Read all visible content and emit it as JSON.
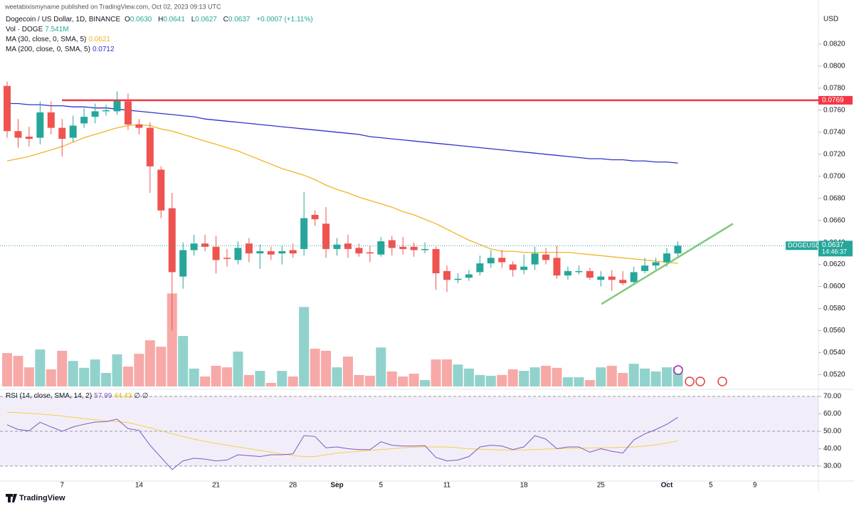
{
  "page": {
    "byline": "weetabixismyname published on TradingView.com, Oct 02, 2023 09:13 UTC",
    "currency": "USD",
    "footer": "TradingView"
  },
  "header": {
    "title": "Dogecoin / US Dollar, 1D, BINANCE",
    "ohlc": [
      {
        "k": "O",
        "v": "0.0630"
      },
      {
        "k": "H",
        "v": "0.0641"
      },
      {
        "k": "L",
        "v": "0.0627"
      },
      {
        "k": "C",
        "v": "0.0637"
      }
    ],
    "change": "+0.0007 (+1.11%)",
    "volume": {
      "name": "Vol · DOGE",
      "value": "7.541M"
    }
  },
  "chart_data": [
    {
      "type": "candlestick",
      "x": [
        "2023-08-02",
        "2023-08-03",
        "2023-08-04",
        "2023-08-05",
        "2023-08-06",
        "2023-08-07",
        "2023-08-08",
        "2023-08-09",
        "2023-08-10",
        "2023-08-11",
        "2023-08-12",
        "2023-08-13",
        "2023-08-14",
        "2023-08-15",
        "2023-08-16",
        "2023-08-17",
        "2023-08-18",
        "2023-08-19",
        "2023-08-20",
        "2023-08-21",
        "2023-08-22",
        "2023-08-23",
        "2023-08-24",
        "2023-08-25",
        "2023-08-26",
        "2023-08-27",
        "2023-08-28",
        "2023-08-29",
        "2023-08-30",
        "2023-08-31",
        "2023-09-01",
        "2023-09-02",
        "2023-09-03",
        "2023-09-04",
        "2023-09-05",
        "2023-09-06",
        "2023-09-07",
        "2023-09-08",
        "2023-09-09",
        "2023-09-10",
        "2023-09-11",
        "2023-09-12",
        "2023-09-13",
        "2023-09-14",
        "2023-09-15",
        "2023-09-16",
        "2023-09-17",
        "2023-09-18",
        "2023-09-19",
        "2023-09-20",
        "2023-09-21",
        "2023-09-22",
        "2023-09-23",
        "2023-09-24",
        "2023-09-25",
        "2023-09-26",
        "2023-09-27",
        "2023-09-28",
        "2023-09-29",
        "2023-09-30",
        "2023-10-01",
        "2023-10-02"
      ],
      "open": [
        0.0782,
        0.0741,
        0.0736,
        0.0735,
        0.0758,
        0.0744,
        0.0735,
        0.0748,
        0.0754,
        0.0759,
        0.0759,
        0.0768,
        0.0747,
        0.0744,
        0.0706,
        0.0671,
        0.0609,
        0.0633,
        0.0639,
        0.0636,
        0.0626,
        0.0624,
        0.0639,
        0.063,
        0.0632,
        0.063,
        0.0633,
        0.0634,
        0.0665,
        0.0657,
        0.0634,
        0.0639,
        0.0635,
        0.0631,
        0.0629,
        0.0642,
        0.0636,
        0.0636,
        0.0633,
        0.0634,
        0.0614,
        0.0606,
        0.0608,
        0.0613,
        0.0621,
        0.0626,
        0.062,
        0.0615,
        0.062,
        0.0629,
        0.0626,
        0.061,
        0.0613,
        0.0614,
        0.0606,
        0.0609,
        0.0606,
        0.0604,
        0.0614,
        0.0619,
        0.0622,
        0.063
      ],
      "high": [
        0.0786,
        0.0752,
        0.0745,
        0.0768,
        0.0768,
        0.0752,
        0.0755,
        0.0762,
        0.0766,
        0.0765,
        0.0777,
        0.0775,
        0.0752,
        0.0749,
        0.0709,
        0.0685,
        0.064,
        0.0647,
        0.0647,
        0.0646,
        0.0634,
        0.0641,
        0.0644,
        0.0638,
        0.0636,
        0.0637,
        0.0639,
        0.0686,
        0.0669,
        0.0672,
        0.0644,
        0.0647,
        0.0639,
        0.0637,
        0.0645,
        0.0646,
        0.0645,
        0.064,
        0.064,
        0.0636,
        0.0619,
        0.0612,
        0.0615,
        0.0628,
        0.0633,
        0.0633,
        0.0623,
        0.0629,
        0.0636,
        0.0635,
        0.0637,
        0.0618,
        0.0619,
        0.0617,
        0.0614,
        0.0615,
        0.0614,
        0.0618,
        0.0626,
        0.0626,
        0.0635,
        0.0641
      ],
      "low": [
        0.0735,
        0.0726,
        0.0727,
        0.0729,
        0.0738,
        0.0718,
        0.0731,
        0.0744,
        0.0748,
        0.0755,
        0.0756,
        0.0742,
        0.0738,
        0.0685,
        0.0662,
        0.056,
        0.0598,
        0.0628,
        0.0632,
        0.0612,
        0.0618,
        0.062,
        0.0622,
        0.0616,
        0.0624,
        0.062,
        0.0626,
        0.0628,
        0.0655,
        0.0626,
        0.0628,
        0.0626,
        0.0627,
        0.0622,
        0.0627,
        0.0628,
        0.0629,
        0.0627,
        0.063,
        0.0597,
        0.0595,
        0.0603,
        0.0605,
        0.061,
        0.0617,
        0.0617,
        0.0609,
        0.0611,
        0.0615,
        0.062,
        0.0607,
        0.0606,
        0.0611,
        0.0606,
        0.06,
        0.0596,
        0.0601,
        0.0601,
        0.0612,
        0.0615,
        0.0618,
        0.0627
      ],
      "close": [
        0.0741,
        0.0735,
        0.0734,
        0.0758,
        0.0744,
        0.0734,
        0.0746,
        0.0754,
        0.0759,
        0.076,
        0.0769,
        0.0747,
        0.0744,
        0.0709,
        0.0669,
        0.0613,
        0.0633,
        0.0639,
        0.0636,
        0.0624,
        0.0625,
        0.0635,
        0.063,
        0.0632,
        0.0629,
        0.0632,
        0.063,
        0.0662,
        0.0661,
        0.0634,
        0.0638,
        0.0634,
        0.063,
        0.063,
        0.0641,
        0.0635,
        0.0634,
        0.0633,
        0.0634,
        0.0612,
        0.0606,
        0.0607,
        0.0611,
        0.0621,
        0.0626,
        0.0622,
        0.0615,
        0.0618,
        0.063,
        0.0624,
        0.061,
        0.0614,
        0.0614,
        0.0608,
        0.0609,
        0.0606,
        0.0603,
        0.0613,
        0.0619,
        0.0622,
        0.063,
        0.0637
      ],
      "volume": [
        13.1,
        12.0,
        7.5,
        14.5,
        6.7,
        14.0,
        10.0,
        7.3,
        10.6,
        5.3,
        12.6,
        7.8,
        12.8,
        18.1,
        15.6,
        36.5,
        19.8,
        7.0,
        3.9,
        8.1,
        7.5,
        13.7,
        4.5,
        6.1,
        1.4,
        6.1,
        3.9,
        31.2,
        14.8,
        14.0,
        7.5,
        11.7,
        4.5,
        4.2,
        15.3,
        5.9,
        3.9,
        5.0,
        2.5,
        10.6,
        10.6,
        8.6,
        7.0,
        4.5,
        4.2,
        4.5,
        6.7,
        6.1,
        7.5,
        8.1,
        7.3,
        3.6,
        3.6,
        2.5,
        7.5,
        8.1,
        5.3,
        8.9,
        7.0,
        5.9,
        7.5,
        7.541
      ],
      "up_color": "#26a69a",
      "down_color": "#ef5350",
      "ma": [
        {
          "name": "MA (30, close, 0, SMA, 5)",
          "color": "#f0b429",
          "last_label": "0.0621",
          "values": [
            0.0714,
            0.0716,
            0.0718,
            0.0721,
            0.0724,
            0.0727,
            0.0731,
            0.0735,
            0.0738,
            0.0741,
            0.0744,
            0.0746,
            0.0747,
            0.0746,
            0.0743,
            0.0741,
            0.0738,
            0.0735,
            0.0732,
            0.0729,
            0.0726,
            0.0723,
            0.0719,
            0.0715,
            0.0711,
            0.0707,
            0.0704,
            0.0701,
            0.0697,
            0.0692,
            0.0688,
            0.0685,
            0.0681,
            0.0678,
            0.0675,
            0.0672,
            0.0668,
            0.0665,
            0.0661,
            0.0657,
            0.0652,
            0.0647,
            0.0642,
            0.0638,
            0.0634,
            0.0632,
            0.0632,
            0.0631,
            0.0631,
            0.0631,
            0.0631,
            0.0631,
            0.063,
            0.0629,
            0.0628,
            0.0627,
            0.0626,
            0.0625,
            0.0624,
            0.0623,
            0.0622,
            0.0621
          ]
        },
        {
          "name": "MA (200, close, 0, SMA, 5)",
          "color": "#3030d0",
          "last_label": "0.0712",
          "values": [
            0.0766,
            0.0766,
            0.0765,
            0.0765,
            0.0764,
            0.0764,
            0.0763,
            0.0763,
            0.0762,
            0.0762,
            0.0761,
            0.076,
            0.0759,
            0.0758,
            0.0757,
            0.0756,
            0.0755,
            0.0754,
            0.0752,
            0.0751,
            0.075,
            0.0749,
            0.0748,
            0.0747,
            0.0746,
            0.0745,
            0.0744,
            0.0743,
            0.0742,
            0.0741,
            0.074,
            0.0739,
            0.0738,
            0.0736,
            0.0735,
            0.0734,
            0.0733,
            0.0732,
            0.0731,
            0.073,
            0.0729,
            0.0728,
            0.0727,
            0.0726,
            0.0725,
            0.0724,
            0.0723,
            0.0722,
            0.0721,
            0.072,
            0.0719,
            0.0718,
            0.0717,
            0.0716,
            0.0716,
            0.0715,
            0.0715,
            0.0714,
            0.0714,
            0.0713,
            0.0713,
            0.0712
          ]
        }
      ],
      "hline": {
        "value": 0.0769,
        "label": "0.0769",
        "color": "#f23645"
      },
      "trendline": {
        "from": 0.0584,
        "to": 0.0657,
        "color": "#7fc97a"
      },
      "price_tag": {
        "symbol": "DOGEUSD",
        "label": "0.0637",
        "countdown": "14:46:37"
      },
      "ylim": [
        0.0508,
        0.086
      ],
      "yticks": [
        {
          "value": 0.082,
          "label": "0.0820"
        },
        {
          "value": 0.08,
          "label": "0.0800"
        },
        {
          "value": 0.078,
          "label": "0.0780"
        },
        {
          "value": 0.076,
          "label": "0.0760"
        },
        {
          "value": 0.074,
          "label": "0.0740"
        },
        {
          "value": 0.072,
          "label": "0.0720"
        },
        {
          "value": 0.07,
          "label": "0.0700"
        },
        {
          "value": 0.068,
          "label": "0.0680"
        },
        {
          "value": 0.066,
          "label": "0.0660"
        },
        {
          "value": 0.064,
          "label": "0.0640"
        },
        {
          "value": 0.062,
          "label": "0.0620"
        },
        {
          "value": 0.06,
          "label": "0.0600"
        },
        {
          "value": 0.058,
          "label": "0.0580"
        },
        {
          "value": 0.056,
          "label": "0.0560"
        },
        {
          "value": 0.054,
          "label": "0.0540"
        },
        {
          "value": 0.052,
          "label": "0.0520"
        }
      ],
      "xticks": [
        {
          "value": "2023-08-07",
          "label": "7"
        },
        {
          "value": "2023-08-14",
          "label": "14"
        },
        {
          "value": "2023-08-21",
          "label": "21"
        },
        {
          "value": "2023-08-28",
          "label": "28"
        },
        {
          "value": "2023-09-01",
          "label": "Sep"
        },
        {
          "value": "2023-09-05",
          "label": "5"
        },
        {
          "value": "2023-09-11",
          "label": "11"
        },
        {
          "value": "2023-09-18",
          "label": "18"
        },
        {
          "value": "2023-09-25",
          "label": "25"
        },
        {
          "value": "2023-10-01",
          "label": "Oct"
        },
        {
          "value": "2023-10-05",
          "label": "5"
        },
        {
          "value": "2023-10-09",
          "label": "9"
        }
      ]
    },
    {
      "type": "line",
      "title": "RSI (14, close, SMA, 14, 2)",
      "nulls": "∅ ∅",
      "series": [
        {
          "color": "#7e57c2",
          "last_label": "57.99",
          "values": [
            53.7,
            51,
            50.3,
            55.2,
            52.5,
            50,
            52.5,
            54,
            55.3,
            55.5,
            57,
            51.5,
            50.5,
            42,
            35,
            28,
            33,
            34.5,
            34,
            33,
            33.5,
            36.5,
            36,
            35.5,
            36.5,
            36.5,
            37,
            47.5,
            47,
            40.5,
            41,
            40,
            39.5,
            39.4,
            44,
            42,
            41.5,
            41.5,
            41.7,
            35,
            33,
            33.5,
            35.5,
            41,
            42,
            41.5,
            39.5,
            41,
            47.5,
            45.5,
            40,
            41,
            41,
            38,
            40,
            38.5,
            37.5,
            45,
            48.5,
            51,
            54,
            57.99
          ]
        },
        {
          "color": "#f5d04a",
          "last_label": "44.43",
          "values": [
            61,
            60.7,
            60.3,
            59.9,
            59.4,
            58.8,
            58,
            57.3,
            56.6,
            56,
            55.5,
            55,
            53.5,
            52,
            50.3,
            48.5,
            47,
            45.5,
            44.2,
            43,
            42,
            41,
            40,
            39,
            38,
            37,
            36,
            35.5,
            35.5,
            36.5,
            37.5,
            38,
            38.5,
            39,
            39.5,
            40,
            40.5,
            40.8,
            41,
            41,
            41,
            40.5,
            40,
            39.7,
            39.5,
            39.3,
            39.3,
            39.3,
            39.5,
            39.8,
            40,
            40.2,
            40.3,
            40.4,
            40.5,
            40.6,
            40.8,
            41,
            41.5,
            42.2,
            43.3,
            44.43
          ]
        }
      ],
      "band": [
        30,
        70
      ],
      "levels": [
        30,
        50,
        70
      ],
      "ylim": [
        21.8,
        73.7
      ],
      "yticks": [
        {
          "value": 70,
          "label": "70.00"
        },
        {
          "value": 60,
          "label": "60.00"
        },
        {
          "value": 50,
          "label": "50.00"
        },
        {
          "value": 40,
          "label": "40.00"
        },
        {
          "value": 30,
          "label": "30.00"
        }
      ]
    }
  ]
}
